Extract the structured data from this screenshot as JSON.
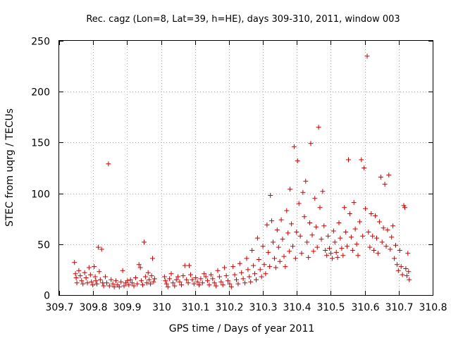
{
  "chart_data": {
    "type": "scatter",
    "title": "Rec. cagz (Lon=8, Lat=39, h=HE), days 309-310, 2011, window 003",
    "xlabel": "GPS time / Days of year 2011",
    "ylabel": "STEC from uqrg / TECUs",
    "xlim": [
      309.7,
      310.8
    ],
    "ylim": [
      0,
      250
    ],
    "xticks": [
      309.7,
      309.8,
      309.9,
      310,
      310.1,
      310.2,
      310.3,
      310.4,
      310.5,
      310.6,
      310.7,
      310.8
    ],
    "xtick_labels": [
      "309.7",
      "309.8",
      "309.9",
      "310",
      "310.1",
      "310.2",
      "310.3",
      "310.4",
      "310.5",
      "310.6",
      "310.7",
      "310.8"
    ],
    "yticks": [
      0,
      50,
      100,
      150,
      200,
      250
    ],
    "ytick_labels": [
      "0",
      "50",
      "100",
      "150",
      "200",
      "250"
    ],
    "grid": true,
    "marker": "+",
    "color": "#cc0000",
    "series": [
      {
        "name": "STEC",
        "points": [
          [
            309.745,
            32
          ],
          [
            309.748,
            21
          ],
          [
            309.75,
            17
          ],
          [
            309.752,
            12
          ],
          [
            309.758,
            24
          ],
          [
            309.762,
            19
          ],
          [
            309.766,
            14
          ],
          [
            309.77,
            11
          ],
          [
            309.775,
            22
          ],
          [
            309.779,
            17
          ],
          [
            309.783,
            12
          ],
          [
            309.788,
            27
          ],
          [
            309.792,
            20
          ],
          [
            309.795,
            13
          ],
          [
            309.799,
            10
          ],
          [
            309.803,
            28
          ],
          [
            309.806,
            18
          ],
          [
            309.808,
            14
          ],
          [
            309.811,
            11
          ],
          [
            309.815,
            47
          ],
          [
            309.818,
            23
          ],
          [
            309.821,
            15
          ],
          [
            309.825,
            45
          ],
          [
            309.828,
            12
          ],
          [
            309.831,
            9
          ],
          [
            309.836,
            18
          ],
          [
            309.84,
            12
          ],
          [
            309.845,
            129
          ],
          [
            309.848,
            9
          ],
          [
            309.853,
            15
          ],
          [
            309.858,
            11
          ],
          [
            309.862,
            8
          ],
          [
            309.867,
            14
          ],
          [
            309.872,
            10
          ],
          [
            309.877,
            8
          ],
          [
            309.882,
            13
          ],
          [
            309.887,
            24
          ],
          [
            309.891,
            9
          ],
          [
            309.896,
            12
          ],
          [
            309.901,
            14
          ],
          [
            309.905,
            10
          ],
          [
            309.91,
            15
          ],
          [
            309.915,
            12
          ],
          [
            309.92,
            9
          ],
          [
            309.925,
            17
          ],
          [
            309.93,
            11
          ],
          [
            309.935,
            30
          ],
          [
            309.939,
            27
          ],
          [
            309.942,
            14
          ],
          [
            309.946,
            10
          ],
          [
            309.95,
            52
          ],
          [
            309.954,
            18
          ],
          [
            309.958,
            12
          ],
          [
            309.962,
            22
          ],
          [
            309.965,
            15
          ],
          [
            309.969,
            11
          ],
          [
            309.972,
            19
          ],
          [
            309.975,
            36
          ],
          [
            309.978,
            13
          ],
          [
            309.981,
            16
          ],
          [
            310.01,
            18
          ],
          [
            310.013,
            14
          ],
          [
            310.016,
            11
          ],
          [
            310.02,
            8
          ],
          [
            310.025,
            16
          ],
          [
            310.03,
            21
          ],
          [
            310.035,
            12
          ],
          [
            310.04,
            9
          ],
          [
            310.045,
            15
          ],
          [
            310.05,
            18
          ],
          [
            310.055,
            13
          ],
          [
            310.06,
            10
          ],
          [
            310.065,
            19
          ],
          [
            310.07,
            29
          ],
          [
            310.075,
            15
          ],
          [
            310.08,
            12
          ],
          [
            310.083,
            29
          ],
          [
            310.087,
            20
          ],
          [
            310.092,
            15
          ],
          [
            310.097,
            11
          ],
          [
            310.102,
            17
          ],
          [
            310.107,
            13
          ],
          [
            310.112,
            10
          ],
          [
            310.117,
            16
          ],
          [
            310.122,
            12
          ],
          [
            310.127,
            21
          ],
          [
            310.132,
            18
          ],
          [
            310.137,
            14
          ],
          [
            310.142,
            10
          ],
          [
            310.147,
            20
          ],
          [
            310.152,
            16
          ],
          [
            310.157,
            12
          ],
          [
            310.162,
            9
          ],
          [
            310.167,
            24
          ],
          [
            310.172,
            18
          ],
          [
            310.177,
            13
          ],
          [
            310.182,
            10
          ],
          [
            310.187,
            27
          ],
          [
            310.192,
            19
          ],
          [
            310.197,
            14
          ],
          [
            310.202,
            11
          ],
          [
            310.207,
            8
          ],
          [
            310.212,
            28
          ],
          [
            310.217,
            20
          ],
          [
            310.222,
            15
          ],
          [
            310.227,
            11
          ],
          [
            310.232,
            31
          ],
          [
            310.237,
            22
          ],
          [
            310.242,
            16
          ],
          [
            310.247,
            12
          ],
          [
            310.252,
            36
          ],
          [
            310.256,
            25
          ],
          [
            310.26,
            18
          ],
          [
            310.264,
            13
          ],
          [
            310.268,
            44
          ],
          [
            310.272,
            29
          ],
          [
            310.276,
            21
          ],
          [
            310.28,
            15
          ],
          [
            310.284,
            56
          ],
          [
            310.288,
            35
          ],
          [
            310.292,
            25
          ],
          [
            310.296,
            18
          ],
          [
            310.3,
            48
          ],
          [
            310.304,
            30
          ],
          [
            310.308,
            21
          ],
          [
            310.312,
            69
          ],
          [
            310.316,
            42
          ],
          [
            310.32,
            28
          ],
          [
            310.322,
            98
          ],
          [
            310.326,
            73
          ],
          [
            310.33,
            52
          ],
          [
            310.334,
            36
          ],
          [
            310.338,
            27
          ],
          [
            310.342,
            64
          ],
          [
            310.346,
            47
          ],
          [
            310.35,
            33
          ],
          [
            310.354,
            74
          ],
          [
            310.358,
            55
          ],
          [
            310.362,
            38
          ],
          [
            310.366,
            28
          ],
          [
            310.37,
            83
          ],
          [
            310.374,
            61
          ],
          [
            310.378,
            43
          ],
          [
            310.38,
            104
          ],
          [
            310.384,
            70
          ],
          [
            310.388,
            48
          ],
          [
            310.392,
            146
          ],
          [
            310.396,
            36
          ],
          [
            310.399,
            62
          ],
          [
            310.402,
            132
          ],
          [
            310.406,
            90
          ],
          [
            310.41,
            58
          ],
          [
            310.414,
            41
          ],
          [
            310.418,
            101
          ],
          [
            310.422,
            77
          ],
          [
            310.426,
            112
          ],
          [
            310.43,
            52
          ],
          [
            310.434,
            37
          ],
          [
            310.438,
            71
          ],
          [
            310.441,
            149
          ],
          [
            310.445,
            59
          ],
          [
            310.449,
            43
          ],
          [
            310.453,
            95
          ],
          [
            310.457,
            67
          ],
          [
            310.46,
            47
          ],
          [
            310.464,
            165
          ],
          [
            310.468,
            86
          ],
          [
            310.472,
            55
          ],
          [
            310.476,
            102
          ],
          [
            310.48,
            68
          ],
          [
            310.484,
            44
          ],
          [
            310.488,
            39
          ],
          [
            310.492,
            58
          ],
          [
            310.496,
            46
          ],
          [
            310.5,
            41
          ],
          [
            310.504,
            36
          ],
          [
            310.508,
            63
          ],
          [
            310.512,
            52
          ],
          [
            310.516,
            42
          ],
          [
            310.52,
            37
          ],
          [
            310.524,
            71
          ],
          [
            310.528,
            56
          ],
          [
            310.532,
            46
          ],
          [
            310.536,
            39
          ],
          [
            310.54,
            86
          ],
          [
            310.544,
            62
          ],
          [
            310.548,
            48
          ],
          [
            310.552,
            133
          ],
          [
            310.556,
            80
          ],
          [
            310.56,
            57
          ],
          [
            310.564,
            44
          ],
          [
            310.568,
            91
          ],
          [
            310.572,
            65
          ],
          [
            310.576,
            50
          ],
          [
            310.58,
            39
          ],
          [
            310.585,
            72
          ],
          [
            310.59,
            133
          ],
          [
            310.594,
            58
          ],
          [
            310.598,
            125
          ],
          [
            310.602,
            85
          ],
          [
            310.607,
            235
          ],
          [
            310.611,
            62
          ],
          [
            310.615,
            47
          ],
          [
            310.619,
            80
          ],
          [
            310.623,
            58
          ],
          [
            310.627,
            44
          ],
          [
            310.631,
            78
          ],
          [
            310.635,
            56
          ],
          [
            310.639,
            41
          ],
          [
            310.643,
            72
          ],
          [
            310.647,
            116
          ],
          [
            310.651,
            52
          ],
          [
            310.655,
            66
          ],
          [
            310.659,
            109
          ],
          [
            310.663,
            48
          ],
          [
            310.667,
            64
          ],
          [
            310.671,
            118
          ],
          [
            310.675,
            45
          ],
          [
            310.679,
            57
          ],
          [
            310.683,
            68
          ],
          [
            310.687,
            36
          ],
          [
            310.691,
            49
          ],
          [
            310.695,
            30
          ],
          [
            310.699,
            24
          ],
          [
            310.703,
            44
          ],
          [
            310.707,
            28
          ],
          [
            310.711,
            20
          ],
          [
            310.715,
            88
          ],
          [
            310.718,
            86
          ],
          [
            310.721,
            26
          ],
          [
            310.724,
            19
          ],
          [
            310.727,
            41
          ],
          [
            310.729,
            23
          ],
          [
            310.731,
            15
          ]
        ]
      }
    ]
  }
}
